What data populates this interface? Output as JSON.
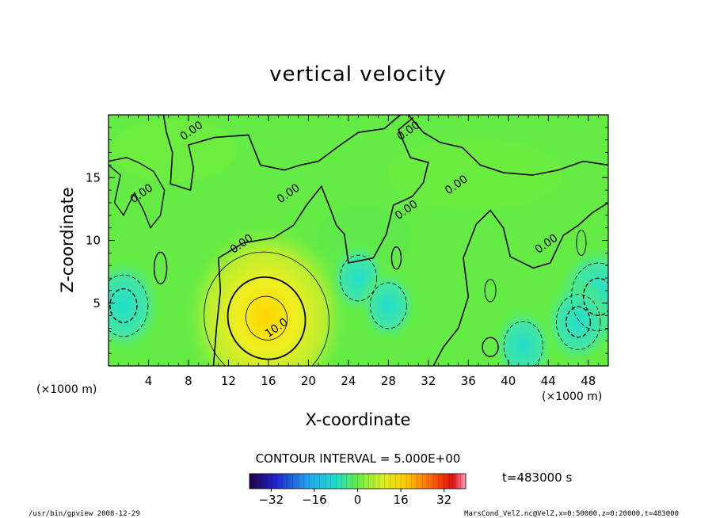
{
  "chart_data": {
    "type": "heatmap",
    "title": "vertical velocity",
    "xlabel": "X-coordinate",
    "ylabel": "Z-coordinate",
    "x_unit": "(×1000 m)",
    "y_unit": "(×1000 m)",
    "xlim": [
      0,
      50
    ],
    "ylim": [
      0,
      20
    ],
    "x_ticks": [
      4,
      8,
      12,
      16,
      20,
      24,
      28,
      32,
      36,
      40,
      44,
      48
    ],
    "y_ticks": [
      5,
      10,
      15
    ],
    "contour_interval_label": "CONTOUR INTERVAL = 5.000E+00",
    "contour_labels": [
      {
        "text": "0.00",
        "x": 8.5,
        "z": 18.5
      },
      {
        "text": "0.00",
        "x": 30.2,
        "z": 18.5
      },
      {
        "text": "0.00",
        "x": 3.5,
        "z": 13.5
      },
      {
        "text": "0.00",
        "x": 18.2,
        "z": 13.5
      },
      {
        "text": "0.00",
        "x": 35.0,
        "z": 14.2
      },
      {
        "text": "0.00",
        "x": 30.0,
        "z": 12.2
      },
      {
        "text": "0.00",
        "x": 13.5,
        "z": 9.5
      },
      {
        "text": "0.00",
        "x": 44.0,
        "z": 9.5
      },
      {
        "text": "10.0",
        "x": 17.0,
        "z": 2.8
      }
    ],
    "features": [
      {
        "kind": "updraft",
        "x": 15.8,
        "z": 4.2,
        "peak": 20
      },
      {
        "kind": "downdraft",
        "x": 1.5,
        "z": 4.8,
        "peak": -10
      },
      {
        "kind": "downdraft",
        "x": 49.0,
        "z": 5.5,
        "peak": -12
      },
      {
        "kind": "downdraft",
        "x": 25.0,
        "z": 7.0,
        "peak": -5
      },
      {
        "kind": "downdraft",
        "x": 28.0,
        "z": 4.8,
        "peak": -5
      },
      {
        "kind": "downdraft",
        "x": 41.5,
        "z": 1.6,
        "peak": -6
      },
      {
        "kind": "downdraft",
        "x": 47.0,
        "z": 3.5,
        "peak": -8
      }
    ],
    "colorbar": {
      "min": -40,
      "max": 40,
      "ticks": [
        -32,
        -16,
        0,
        16,
        32
      ],
      "tick_labels": [
        "−32",
        "−16",
        "0",
        "16",
        "32"
      ]
    },
    "time_label": "t=483000 s",
    "grid": false,
    "legend": "colorbar bottom-center"
  },
  "footer": {
    "left": "/usr/bin/gpview   2008-12-29",
    "right": "MarsCond_VelZ.nc@VelZ,x=0:50000,z=0:20000,t=483000"
  },
  "colors": {
    "background_field": "#66ee44",
    "updraft_core": "#ffe000",
    "downdraft_core": "#22ddcc",
    "contour": "#000000"
  }
}
